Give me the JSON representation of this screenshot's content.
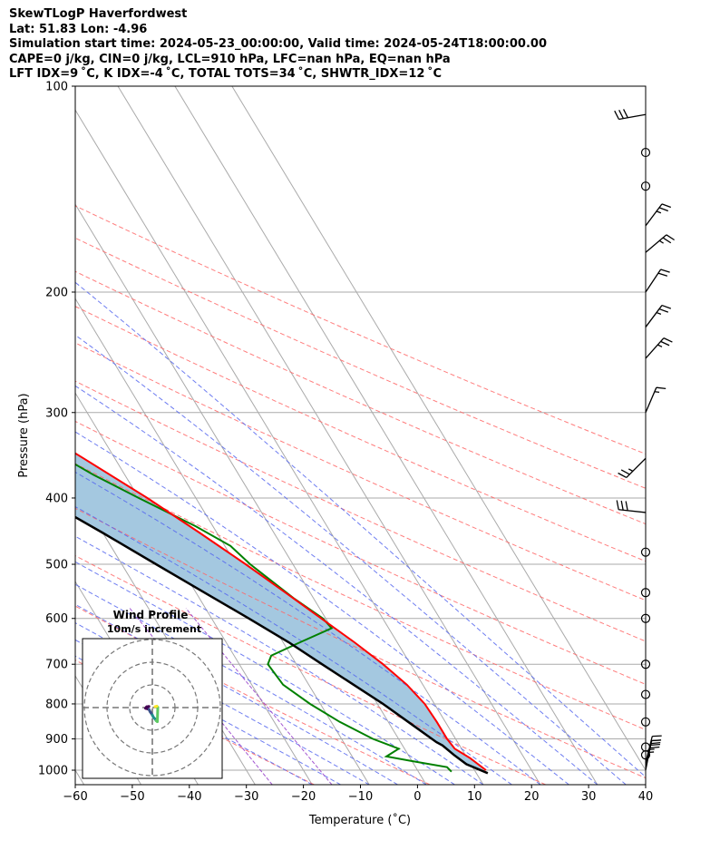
{
  "header": {
    "line1": "SkewTLogP Haverfordwest",
    "line2": "Lat: 51.83   Lon: -4.96",
    "line3": "Simulation start time: 2024-05-23_00:00:00, Valid time: 2024-05-24T18:00:00.00",
    "line4": "CAPE=0 j/kg, CIN=0 j/kg, LCL=910 hPa, LFC=nan hPa, EQ=nan hPa",
    "line5": "LFT IDX=9 ˚C, K IDX=-4 ˚C, TOTAL TOTS=34 ˚C, SHWTR_IDX=12 ˚C"
  },
  "chart_data": {
    "type": "skewt-logp",
    "xlabel": "Temperature (˚C)",
    "ylabel": "Pressure (hPa)",
    "xlim": [
      -60,
      40
    ],
    "ylim": [
      1050,
      100
    ],
    "x_ticks": [
      "−60",
      "−50",
      "−40",
      "−30",
      "−20",
      "−10",
      "0",
      "10",
      "20",
      "30",
      "40"
    ],
    "y_ticks": [
      "100",
      "200",
      "300",
      "400",
      "500",
      "600",
      "700",
      "800",
      "900",
      "1000"
    ],
    "grid": true,
    "colors": {
      "temperature": "#ff0000",
      "dewpoint": "#008000",
      "parcel": "#000000",
      "fill": "#a4c8e0",
      "dry_adiabat": "#ff6666",
      "moist_adiabat": "#5566ee",
      "mixing_ratio": "#9944cc",
      "isotherm": "#aaaaaa"
    },
    "temperature_profile": [
      [
        1000,
        12
      ],
      [
        960,
        10.5
      ],
      [
        930,
        8.8
      ],
      [
        900,
        8.5
      ],
      [
        850,
        8.5
      ],
      [
        800,
        8.3
      ],
      [
        750,
        7.2
      ],
      [
        700,
        5.2
      ],
      [
        650,
        2.5
      ],
      [
        600,
        -0.8
      ],
      [
        550,
        -4.3
      ],
      [
        500,
        -8.3
      ],
      [
        450,
        -13
      ],
      [
        400,
        -18.5
      ],
      [
        350,
        -25.5
      ],
      [
        310,
        -32
      ],
      [
        300,
        -33.5
      ],
      [
        275,
        -37
      ],
      [
        250,
        -41
      ],
      [
        225,
        -46.5
      ],
      [
        200,
        -52
      ],
      [
        175,
        -58
      ],
      [
        150,
        -64
      ],
      [
        125,
        -70
      ],
      [
        100,
        -75
      ]
    ],
    "dewpoint_profile": [
      [
        1005,
        5.8
      ],
      [
        990,
        5.5
      ],
      [
        970,
        0
      ],
      [
        955,
        -4
      ],
      [
        930,
        -1
      ],
      [
        900,
        -4.5
      ],
      [
        850,
        -8.5
      ],
      [
        800,
        -11.8
      ],
      [
        750,
        -14.5
      ],
      [
        700,
        -15
      ],
      [
        680,
        -13.5
      ],
      [
        650,
        -7
      ],
      [
        620,
        0
      ],
      [
        600,
        -0.5
      ],
      [
        560,
        -3.5
      ],
      [
        500,
        -7.5
      ],
      [
        470,
        -9
      ],
      [
        440,
        -13
      ],
      [
        400,
        -20
      ],
      [
        370,
        -25.5
      ],
      [
        340,
        -30.5
      ],
      [
        330,
        -32
      ],
      [
        320,
        -31.5
      ],
      [
        310,
        -32
      ],
      [
        290,
        -35.5
      ],
      [
        270,
        -39
      ],
      [
        260,
        -41.5
      ],
      [
        250,
        -43.5
      ],
      [
        235,
        -46.5
      ],
      [
        220,
        -51.5
      ],
      [
        210,
        -53.5
      ],
      [
        205,
        -54.5
      ],
      [
        200,
        -56.5
      ],
      [
        190,
        -60
      ],
      [
        175,
        -65
      ],
      [
        150,
        -73
      ],
      [
        125,
        -79
      ],
      [
        100,
        -83
      ]
    ],
    "parcel_profile": [
      [
        1010,
        12
      ],
      [
        980,
        9.2
      ],
      [
        950,
        8
      ],
      [
        920,
        7
      ],
      [
        910,
        6.3
      ],
      [
        850,
        3.5
      ],
      [
        800,
        1
      ],
      [
        700,
        -5.5
      ],
      [
        650,
        -9
      ],
      [
        600,
        -13.5
      ],
      [
        550,
        -18.5
      ],
      [
        500,
        -24
      ],
      [
        450,
        -30
      ],
      [
        400,
        -37
      ],
      [
        350,
        -45
      ],
      [
        300,
        -54
      ],
      [
        250,
        -64.5
      ],
      [
        200,
        -76
      ],
      [
        150,
        -90
      ],
      [
        125,
        -99
      ],
      [
        100,
        -109
      ]
    ],
    "wind_barbs": [
      {
        "p": 1000,
        "type": "barb",
        "u_kt": -5,
        "v_kt": -25
      },
      {
        "p": 990,
        "type": "barb",
        "u_kt": -5,
        "v_kt": -22
      },
      {
        "p": 975,
        "type": "barb",
        "u_kt": -5,
        "v_kt": -20
      },
      {
        "p": 950,
        "type": "calm"
      },
      {
        "p": 925,
        "type": "calm"
      },
      {
        "p": 850,
        "type": "calm"
      },
      {
        "p": 775,
        "type": "calm"
      },
      {
        "p": 700,
        "type": "calm"
      },
      {
        "p": 600,
        "type": "calm"
      },
      {
        "p": 550,
        "type": "calm"
      },
      {
        "p": 480,
        "type": "calm"
      },
      {
        "p": 420,
        "type": "barb",
        "u_kt": 28,
        "v_kt": -3
      },
      {
        "p": 350,
        "type": "barb",
        "u_kt": 18,
        "v_kt": 18
      },
      {
        "p": 300,
        "type": "barb",
        "u_kt": -6,
        "v_kt": -14
      },
      {
        "p": 250,
        "type": "barb",
        "u_kt": -16,
        "v_kt": -18
      },
      {
        "p": 225,
        "type": "barb",
        "u_kt": -15,
        "v_kt": -20
      },
      {
        "p": 200,
        "type": "barb",
        "u_kt": -12,
        "v_kt": -18
      },
      {
        "p": 175,
        "type": "barb",
        "u_kt": -20,
        "v_kt": -17
      },
      {
        "p": 160,
        "type": "barb",
        "u_kt": -15,
        "v_kt": -20
      },
      {
        "p": 140,
        "type": "calm"
      },
      {
        "p": 125,
        "type": "calm"
      },
      {
        "p": 110,
        "type": "barb",
        "u_kt": 28,
        "v_kt": 5
      }
    ],
    "inset": {
      "title": "Wind Profile",
      "subtitle": "10m/s increment",
      "rings_ms": [
        10,
        20,
        30
      ],
      "hodograph_uv": [
        [
          -1.5,
          0.5
        ],
        [
          -2.5,
          0.3
        ],
        [
          -3,
          -0.3
        ],
        [
          -1.5,
          -0.8
        ],
        [
          -1,
          -1.8
        ],
        [
          -0.5,
          -2.5
        ],
        [
          0,
          -3.3
        ],
        [
          0.5,
          -4.3
        ],
        [
          1.2,
          -5
        ],
        [
          1.7,
          -5.8
        ],
        [
          2.2,
          -6.2
        ],
        [
          2.4,
          0.1
        ],
        [
          2.0,
          0.6
        ],
        [
          1.2,
          0.4
        ]
      ]
    }
  }
}
